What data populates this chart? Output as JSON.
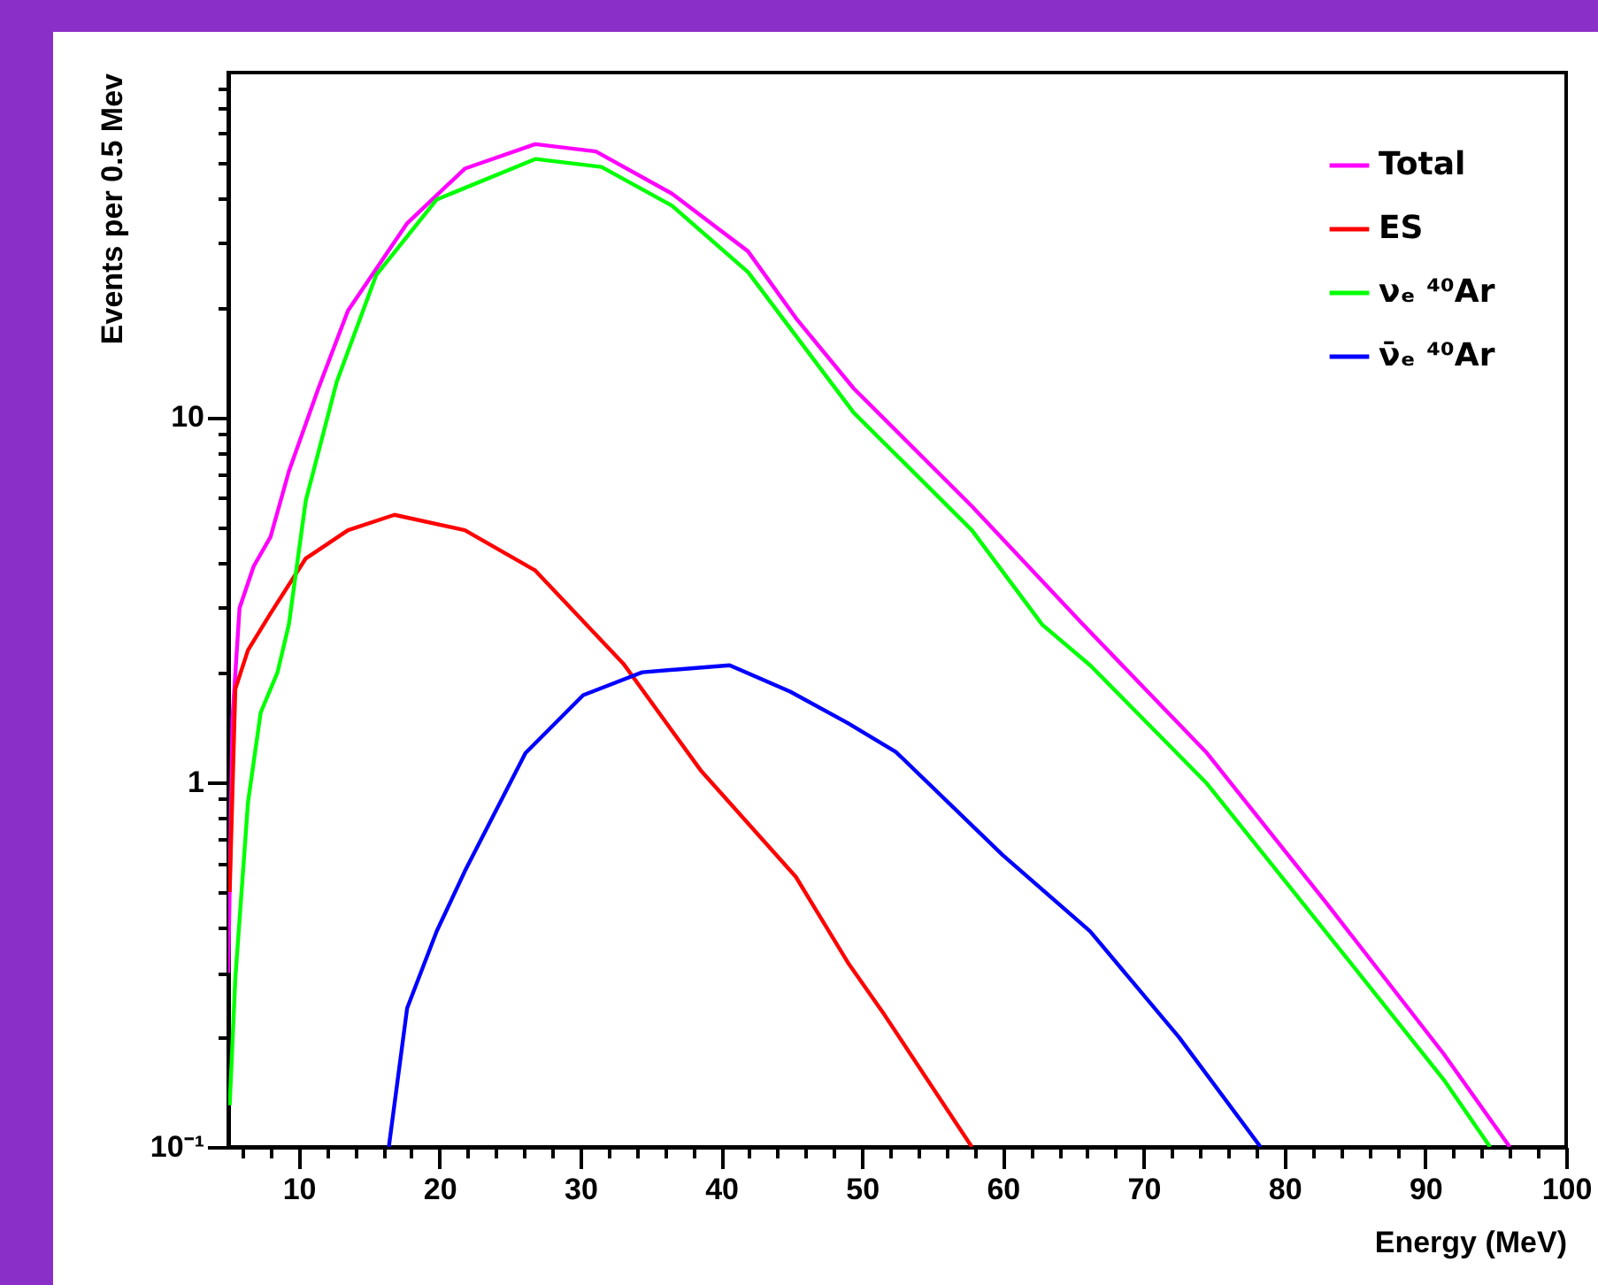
{
  "chart_data": {
    "type": "line",
    "xlabel": "Energy (MeV)",
    "ylabel": "Events per 0.5 Mev",
    "log": "y",
    "legend": "top right",
    "grid": false,
    "xlim": [
      5,
      100
    ],
    "ylim": [
      0.1,
      88
    ],
    "xticks": [
      {
        "value": 6,
        "label": null
      },
      {
        "value": 8,
        "label": null
      },
      10,
      {
        "value": 12,
        "label": null
      },
      {
        "value": 14,
        "label": null
      },
      {
        "value": 16,
        "label": null
      },
      {
        "value": 18,
        "label": null
      },
      20,
      {
        "value": 22,
        "label": null
      },
      {
        "value": 24,
        "label": null
      },
      {
        "value": 26,
        "label": null
      },
      {
        "value": 28,
        "label": null
      },
      30,
      {
        "value": 32,
        "label": null
      },
      {
        "value": 34,
        "label": null
      },
      {
        "value": 36,
        "label": null
      },
      {
        "value": 38,
        "label": null
      },
      40,
      {
        "value": 42,
        "label": null
      },
      {
        "value": 44,
        "label": null
      },
      {
        "value": 46,
        "label": null
      },
      {
        "value": 48,
        "label": null
      },
      50,
      {
        "value": 52,
        "label": null
      },
      {
        "value": 54,
        "label": null
      },
      {
        "value": 56,
        "label": null
      },
      {
        "value": 58,
        "label": null
      },
      60,
      {
        "value": 62,
        "label": null
      },
      {
        "value": 64,
        "label": null
      },
      {
        "value": 66,
        "label": null
      },
      {
        "value": 68,
        "label": null
      },
      70,
      {
        "value": 72,
        "label": null
      },
      {
        "value": 74,
        "label": null
      },
      {
        "value": 76,
        "label": null
      },
      {
        "value": 78,
        "label": null
      },
      80,
      {
        "value": 82,
        "label": null
      },
      {
        "value": 84,
        "label": null
      },
      {
        "value": 86,
        "label": null
      },
      {
        "value": 88,
        "label": null
      },
      90,
      {
        "value": 92,
        "label": null
      },
      {
        "value": 94,
        "label": null
      },
      {
        "value": 96,
        "label": null
      },
      {
        "value": 98,
        "label": null
      },
      100
    ],
    "yticks": [
      {
        "value": 0.1,
        "label": "10⁻¹"
      },
      {
        "value": 0.2,
        "label": null
      },
      {
        "value": 0.3,
        "label": null
      },
      {
        "value": 0.4,
        "label": null
      },
      {
        "value": 0.5,
        "label": null
      },
      {
        "value": 0.6,
        "label": null
      },
      {
        "value": 0.7,
        "label": null
      },
      {
        "value": 0.8,
        "label": null
      },
      {
        "value": 0.9,
        "label": null
      },
      1,
      {
        "value": 2,
        "label": null
      },
      {
        "value": 3,
        "label": null
      },
      {
        "value": 4,
        "label": null
      },
      {
        "value": 5,
        "label": null
      },
      {
        "value": 6,
        "label": null
      },
      {
        "value": 7,
        "label": null
      },
      {
        "value": 8,
        "label": null
      },
      {
        "value": 9,
        "label": null
      },
      10,
      {
        "value": 20,
        "label": null
      },
      {
        "value": 30,
        "label": null
      },
      {
        "value": 40,
        "label": null
      },
      {
        "value": 50,
        "label": null
      },
      {
        "value": 60,
        "label": null
      },
      {
        "value": 70,
        "label": null
      },
      {
        "value": 80,
        "label": null
      }
    ],
    "series": [
      {
        "name": "Total",
        "color": "#ff00ff",
        "x": [
          5,
          5.3,
          5.8,
          6.8,
          8,
          9.3,
          11.4,
          13.5,
          17.7,
          21.8,
          26.8,
          31.1,
          36.5,
          41.9,
          45.3,
          49.4,
          57.8,
          65.7,
          74.5,
          82.9,
          91.3,
          96
        ],
        "values": [
          0.3,
          1.5,
          3,
          3.9,
          4.7,
          7.1,
          12,
          19.6,
          34,
          48,
          56,
          53.5,
          41,
          28.5,
          18.7,
          12,
          5.7,
          2.7,
          1.2,
          0.47,
          0.18,
          0.1
        ]
      },
      {
        "name": "ES",
        "color": "#ff0000",
        "x": [
          5.1,
          5.5,
          6.4,
          8,
          10.5,
          13.5,
          16.8,
          21.8,
          26.8,
          33.1,
          38.6,
          45.3,
          49,
          51.6,
          57.8
        ],
        "values": [
          0.5,
          1.8,
          2.3,
          2.9,
          4.1,
          4.9,
          5.4,
          4.9,
          3.8,
          2.1,
          1.07,
          0.55,
          0.32,
          0.23,
          0.1
        ]
      },
      {
        "name": "νₑ ⁴⁰Ar",
        "color": "#00ff00",
        "x": [
          5.1,
          5.5,
          6.4,
          7.3,
          8.5,
          9.3,
          10.5,
          12.7,
          15.5,
          19.8,
          26.8,
          31.5,
          36.5,
          41.9,
          49.4,
          57.8,
          62.8,
          66.2,
          74.5,
          82.9,
          91.3,
          94.6
        ],
        "values": [
          0.13,
          0.29,
          0.88,
          1.55,
          2,
          2.7,
          5.9,
          12.5,
          24.5,
          39.5,
          51,
          48.5,
          38,
          25,
          10.3,
          4.9,
          2.7,
          2.09,
          0.99,
          0.39,
          0.153,
          0.1
        ]
      },
      {
        "name": "ν̄ₑ ⁴⁰Ar",
        "color": "#0000ff",
        "x": [
          16.4,
          17.7,
          19.8,
          21.8,
          26.1,
          30.2,
          34.4,
          40.6,
          44.9,
          49,
          52.4,
          60,
          66.2,
          72.5,
          78.3
        ],
        "values": [
          0.1,
          0.24,
          0.39,
          0.57,
          1.2,
          1.73,
          2,
          2.09,
          1.77,
          1.45,
          1.21,
          0.63,
          0.39,
          0.2,
          0.1
        ]
      }
    ]
  }
}
